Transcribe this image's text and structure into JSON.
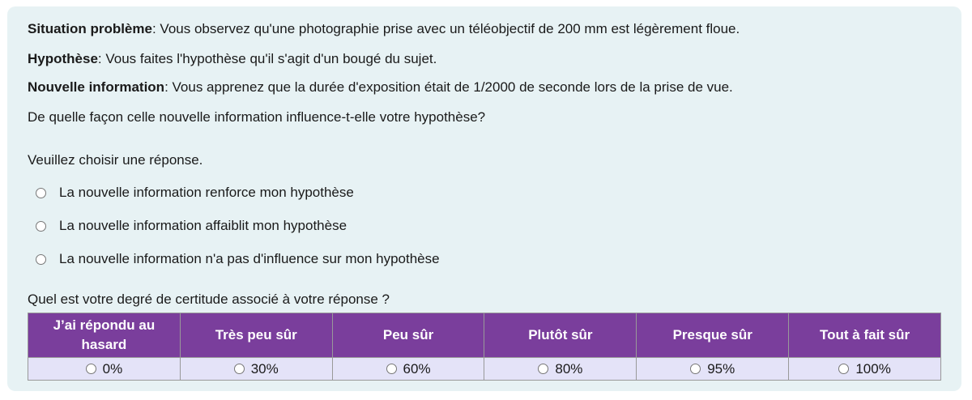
{
  "situation": {
    "label": "Situation problème",
    "text": ": Vous observez qu'une photographie prise avec un téléobjectif de 200 mm est légèrement floue."
  },
  "hypothesis": {
    "label": "Hypothèse",
    "text": ": Vous faites l'hypothèse qu'il s'agit d'un bougé du sujet."
  },
  "new_info": {
    "label": "Nouvelle information",
    "text": ": Vous apprenez que la durée d'exposition était de 1/2000 de seconde lors de la prise de vue."
  },
  "question": "De quelle façon celle nouvelle information influence-t-elle votre hypothèse?",
  "instruction": "Veuillez choisir une réponse.",
  "options": [
    "La nouvelle information renforce mon hypothèse",
    "La nouvelle information affaiblit mon hypothèse",
    "La nouvelle information n'a pas d'influence sur mon hypothèse"
  ],
  "certainty": {
    "question": "Quel est votre degré de certitude associé à votre réponse ?",
    "headers": [
      "J’ai répondu au hasard",
      "Très peu sûr",
      "Peu sûr",
      "Plutôt sûr",
      "Presque sûr",
      "Tout à fait sûr"
    ],
    "values": [
      "0%",
      "30%",
      "60%",
      "80%",
      "95%",
      "100%"
    ]
  },
  "colors": {
    "header": "#7a3e9c",
    "panel": "#e7f2f4",
    "cell": "#e4e3f8"
  }
}
